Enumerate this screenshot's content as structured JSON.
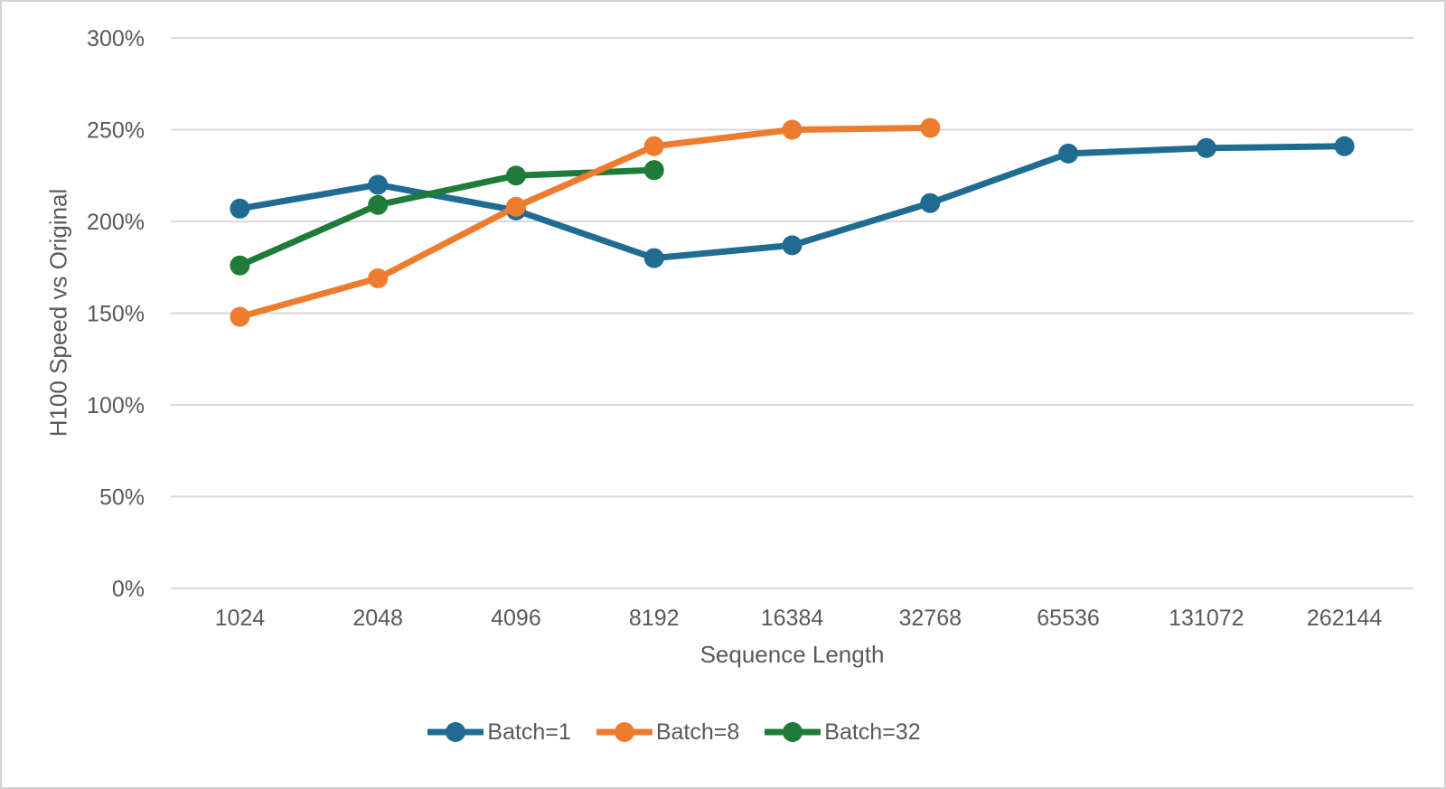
{
  "figure": {
    "background": "#FFFFFF",
    "border_color": "#D2D2D2",
    "text_color": "#595959",
    "gridline_color": "#D9D9D9"
  },
  "chart_data": {
    "type": "line",
    "title": "",
    "xlabel": "Sequence Length",
    "ylabel": "H100 Speed vs Original",
    "categories": [
      "1024",
      "2048",
      "4096",
      "8192",
      "16384",
      "32768",
      "65536",
      "131072",
      "262144"
    ],
    "y_axis": {
      "min": 0,
      "max": 300,
      "tick_step": 50,
      "tick_labels": [
        "0%",
        "50%",
        "100%",
        "150%",
        "200%",
        "250%",
        "300%"
      ],
      "unit": "percent"
    },
    "grid": "horizontal-only",
    "legend_position": "bottom-center",
    "marker": "circle",
    "series": [
      {
        "name": "Batch=1",
        "color": "#1F6B92",
        "values_percent": [
          207,
          220,
          206,
          180,
          187,
          210,
          237,
          240,
          241
        ]
      },
      {
        "name": "Batch=8",
        "color": "#ED7C2F",
        "values_percent": [
          148,
          169,
          208,
          241,
          250,
          251
        ]
      },
      {
        "name": "Batch=32",
        "color": "#1E7B38",
        "values_percent": [
          176,
          209,
          225,
          228
        ]
      }
    ]
  }
}
